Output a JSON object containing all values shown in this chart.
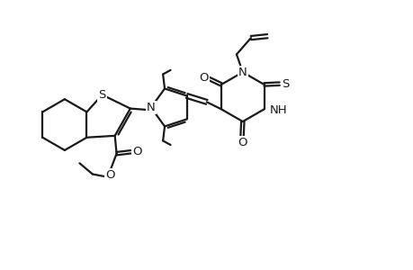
{
  "bg_color": "#ffffff",
  "line_color": "#1a1a1a",
  "line_width": 1.6,
  "font_size": 9.5,
  "figsize": [
    4.6,
    3.0
  ],
  "dpi": 100,
  "xlim": [
    0,
    12
  ],
  "ylim": [
    0,
    7.5
  ]
}
